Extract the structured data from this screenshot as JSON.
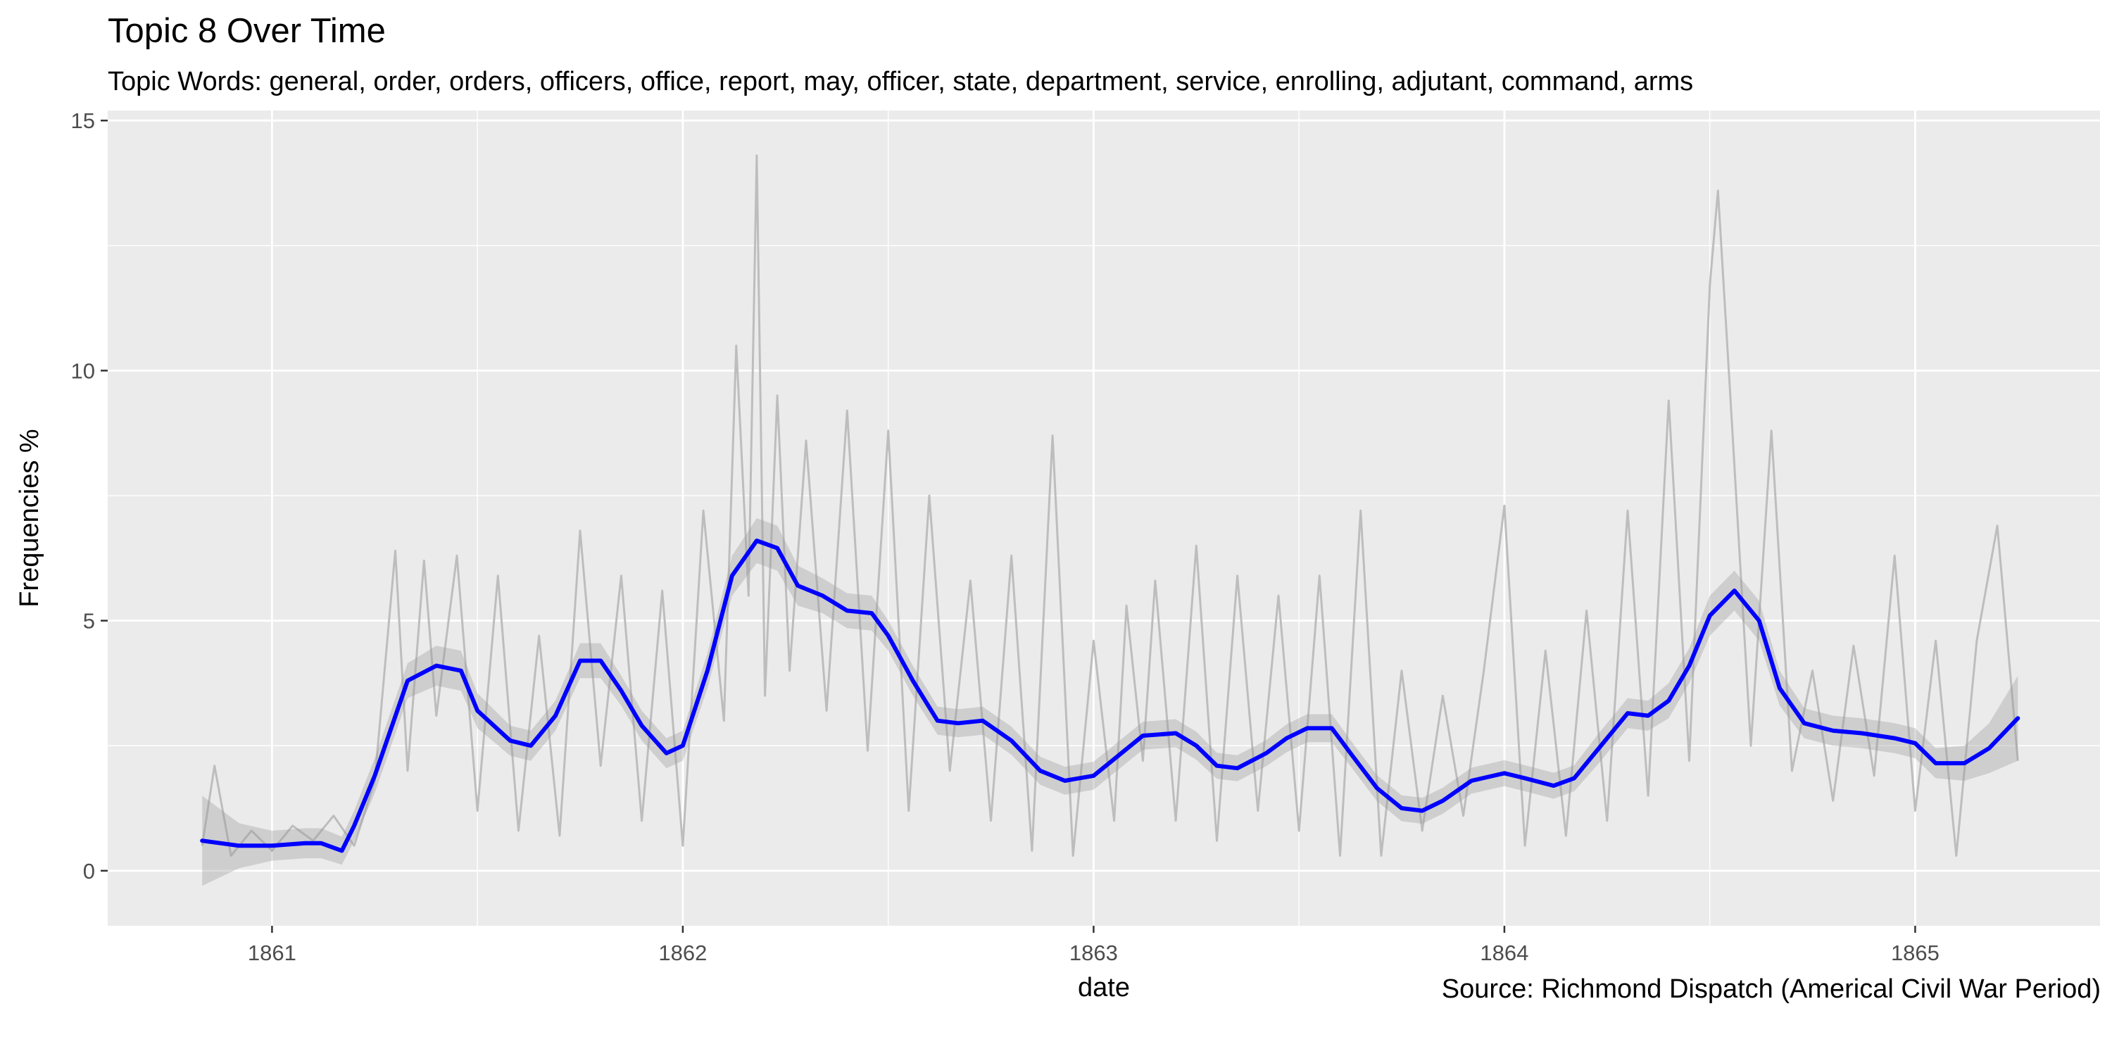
{
  "chart_data": {
    "type": "line",
    "title": "Topic 8 Over Time",
    "subtitle": "Topic Words: general, order, orders, officers, office, report, may, officer, state, department, service, enrolling, adjutant, command, arms",
    "caption": "Source: Richmond Dispatch (Americal Civil War Period)",
    "xlabel": "date",
    "ylabel": "Frequencies %",
    "xlim": [
      1860.6,
      1865.45
    ],
    "ylim": [
      -1.1,
      15.2
    ],
    "x_ticks": [
      1861,
      1862,
      1863,
      1864,
      1865
    ],
    "x_tick_labels": [
      "1861",
      "1862",
      "1863",
      "1864",
      "1865"
    ],
    "y_ticks": [
      0,
      5,
      10,
      15
    ],
    "y_tick_labels": [
      "0",
      "5",
      "10",
      "15"
    ],
    "grid": true,
    "colors": {
      "panel": "#ebebeb",
      "grid_major": "#ffffff",
      "raw_line": "#bdbdbd",
      "ribbon": "#999999",
      "smooth_line": "#0000ff"
    },
    "series": [
      {
        "role": "smoothed",
        "x": [
          1860.83,
          1860.92,
          1861.0,
          1861.08,
          1861.12,
          1861.17,
          1861.2,
          1861.25,
          1861.33,
          1861.4,
          1861.46,
          1861.5,
          1861.58,
          1861.63,
          1861.69,
          1861.75,
          1861.8,
          1861.85,
          1861.9,
          1861.96,
          1862.0,
          1862.06,
          1862.12,
          1862.18,
          1862.23,
          1862.28,
          1862.34,
          1862.4,
          1862.46,
          1862.5,
          1862.56,
          1862.62,
          1862.67,
          1862.73,
          1862.8,
          1862.87,
          1862.93,
          1863.0,
          1863.06,
          1863.12,
          1863.2,
          1863.25,
          1863.3,
          1863.35,
          1863.42,
          1863.47,
          1863.52,
          1863.58,
          1863.63,
          1863.69,
          1863.75,
          1863.8,
          1863.85,
          1863.92,
          1864.0,
          1864.05,
          1864.12,
          1864.17,
          1864.23,
          1864.3,
          1864.35,
          1864.4,
          1864.45,
          1864.5,
          1864.56,
          1864.62,
          1864.67,
          1864.73,
          1864.8,
          1864.87,
          1864.95,
          1865.0,
          1865.05,
          1865.12,
          1865.18,
          1865.25
        ],
        "y": [
          0.6,
          0.5,
          0.5,
          0.55,
          0.55,
          0.4,
          0.9,
          1.9,
          3.8,
          4.1,
          4.0,
          3.2,
          2.6,
          2.5,
          3.1,
          4.2,
          4.2,
          3.6,
          2.9,
          2.35,
          2.5,
          4.0,
          5.9,
          6.6,
          6.45,
          5.7,
          5.5,
          5.2,
          5.15,
          4.7,
          3.8,
          3.0,
          2.95,
          3.0,
          2.6,
          2.0,
          1.8,
          1.9,
          2.3,
          2.7,
          2.75,
          2.5,
          2.1,
          2.05,
          2.35,
          2.65,
          2.85,
          2.85,
          2.3,
          1.65,
          1.25,
          1.2,
          1.4,
          1.8,
          1.95,
          1.85,
          1.7,
          1.85,
          2.45,
          3.15,
          3.1,
          3.4,
          4.1,
          5.1,
          5.6,
          5.0,
          3.65,
          2.95,
          2.8,
          2.75,
          2.65,
          2.55,
          2.15,
          2.15,
          2.45,
          3.05
        ]
      },
      {
        "role": "raw",
        "x": [
          1860.83,
          1860.86,
          1860.9,
          1860.95,
          1861.0,
          1861.05,
          1861.1,
          1861.15,
          1861.2,
          1861.25,
          1861.3,
          1861.33,
          1861.37,
          1861.4,
          1861.45,
          1861.5,
          1861.55,
          1861.6,
          1861.65,
          1861.7,
          1861.75,
          1861.8,
          1861.85,
          1861.9,
          1861.95,
          1862.0,
          1862.05,
          1862.1,
          1862.13,
          1862.16,
          1862.18,
          1862.2,
          1862.23,
          1862.26,
          1862.3,
          1862.35,
          1862.4,
          1862.45,
          1862.5,
          1862.55,
          1862.6,
          1862.65,
          1862.7,
          1862.75,
          1862.8,
          1862.85,
          1862.9,
          1862.95,
          1863.0,
          1863.05,
          1863.08,
          1863.12,
          1863.15,
          1863.2,
          1863.25,
          1863.3,
          1863.35,
          1863.4,
          1863.45,
          1863.5,
          1863.55,
          1863.6,
          1863.65,
          1863.7,
          1863.75,
          1863.8,
          1863.85,
          1863.9,
          1863.95,
          1864.0,
          1864.05,
          1864.1,
          1864.15,
          1864.2,
          1864.25,
          1864.3,
          1864.35,
          1864.4,
          1864.45,
          1864.5,
          1864.52,
          1864.55,
          1864.6,
          1864.65,
          1864.7,
          1864.75,
          1864.8,
          1864.85,
          1864.9,
          1864.95,
          1865.0,
          1865.05,
          1865.1,
          1865.15,
          1865.2,
          1865.25
        ],
        "y": [
          0.5,
          2.1,
          0.3,
          0.8,
          0.4,
          0.9,
          0.6,
          1.1,
          0.5,
          1.8,
          6.4,
          2.0,
          6.2,
          3.1,
          6.3,
          1.2,
          5.9,
          0.8,
          4.7,
          0.7,
          6.8,
          2.1,
          5.9,
          1.0,
          5.6,
          0.5,
          7.2,
          3.0,
          10.5,
          5.5,
          14.3,
          3.5,
          9.5,
          4.0,
          8.6,
          3.2,
          9.2,
          2.4,
          8.8,
          1.2,
          7.5,
          2.0,
          5.8,
          1.0,
          6.3,
          0.4,
          8.7,
          0.3,
          4.6,
          1.0,
          5.3,
          2.2,
          5.8,
          1.0,
          6.5,
          0.6,
          5.9,
          1.2,
          5.5,
          0.8,
          5.9,
          0.3,
          7.2,
          0.3,
          4.0,
          0.8,
          3.5,
          1.1,
          4.0,
          7.3,
          0.5,
          4.4,
          0.7,
          5.2,
          1.0,
          7.2,
          1.5,
          9.4,
          2.2,
          11.7,
          13.6,
          9.5,
          2.5,
          8.8,
          2.0,
          4.0,
          1.4,
          4.5,
          1.9,
          6.3,
          1.2,
          4.6,
          0.3,
          4.6,
          6.9,
          2.2
        ]
      }
    ],
    "ribbon_halfwidth": [
      0.9,
      0.45,
      0.3,
      0.3,
      0.3,
      0.28,
      0.3,
      0.35,
      0.35,
      0.4,
      0.4,
      0.35,
      0.3,
      0.3,
      0.3,
      0.35,
      0.35,
      0.3,
      0.3,
      0.3,
      0.3,
      0.35,
      0.4,
      0.45,
      0.45,
      0.4,
      0.35,
      0.35,
      0.35,
      0.3,
      0.3,
      0.28,
      0.28,
      0.28,
      0.28,
      0.28,
      0.28,
      0.28,
      0.28,
      0.28,
      0.28,
      0.28,
      0.26,
      0.26,
      0.26,
      0.28,
      0.28,
      0.28,
      0.26,
      0.26,
      0.26,
      0.26,
      0.26,
      0.26,
      0.26,
      0.26,
      0.26,
      0.26,
      0.3,
      0.3,
      0.3,
      0.35,
      0.35,
      0.4,
      0.4,
      0.4,
      0.35,
      0.3,
      0.3,
      0.3,
      0.3,
      0.3,
      0.3,
      0.35,
      0.5,
      0.85
    ]
  }
}
